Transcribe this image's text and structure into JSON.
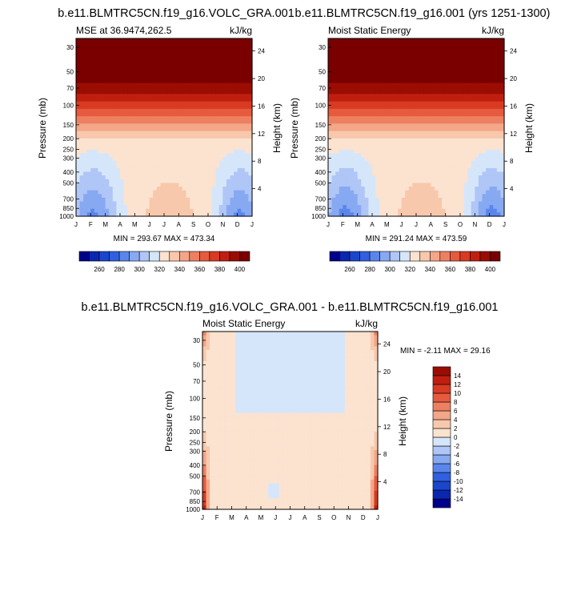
{
  "months": [
    "J",
    "F",
    "M",
    "A",
    "M",
    "J",
    "J",
    "A",
    "S",
    "O",
    "N",
    "D",
    "J"
  ],
  "pressure_ticks": [
    30,
    50,
    70,
    100,
    150,
    200,
    250,
    300,
    400,
    500,
    700,
    850,
    1000
  ],
  "height_ticks": [
    4,
    8,
    12,
    16,
    20,
    24
  ],
  "palette_abs": [
    "#00008c",
    "#0b27b0",
    "#1a46cc",
    "#3060e0",
    "#5a86ec",
    "#87a9f2",
    "#afc6f6",
    "#d6e6fa",
    "#fbe3d0",
    "#f8c8ac",
    "#f4a688",
    "#ee8062",
    "#e65a3e",
    "#d93a22",
    "#c01f10",
    "#9b0d03",
    "#7a0000"
  ],
  "palette_diff": [
    "#00008c",
    "#0b27b0",
    "#1a46cc",
    "#3060e0",
    "#5a86ec",
    "#87a9f2",
    "#afc6f6",
    "#d6e6fa",
    "#fbe3d0",
    "#f8c8ac",
    "#f4a688",
    "#ee8062",
    "#e65a3e",
    "#d93a22",
    "#c01f10",
    "#9b0d03"
  ],
  "chart_data": [
    {
      "type": "heatmap",
      "title": "b.e11.BLMTRC5CN.f19_g16.VOLC_GRA.001",
      "subtitle_left": "MSE at 36.9474,262.5",
      "subtitle_right": "kJ/kg",
      "xlabel": "",
      "ylabel": "Pressure (mb)",
      "ylabel_right": "Height (km)",
      "stats": "MIN = 293.67 MAX = 473.34",
      "colorbar_labels": [
        "260",
        "280",
        "300",
        "320",
        "340",
        "360",
        "380",
        "400"
      ],
      "level_range": [
        255,
        405
      ],
      "levels_step": 10
    },
    {
      "type": "heatmap",
      "title": "b.e11.BLMTRC5CN.f19_g16.001 (yrs 1251-1300)",
      "subtitle_left": "Moist Static Energy",
      "subtitle_right": "kJ/kg",
      "xlabel": "",
      "ylabel": "Pressure (mb)",
      "ylabel_right": "Height (km)",
      "stats": "MIN = 291.24 MAX = 473.59",
      "colorbar_labels": [
        "260",
        "280",
        "300",
        "320",
        "340",
        "360",
        "380",
        "400"
      ],
      "level_range": [
        255,
        405
      ],
      "levels_step": 10
    },
    {
      "type": "heatmap",
      "title": "b.e11.BLMTRC5CN.f19_g16.VOLC_GRA.001 - b.e11.BLMTRC5CN.f19_g16.001",
      "subtitle_left": "Moist Static Energy",
      "subtitle_right": "kJ/kg",
      "xlabel": "",
      "ylabel": "Pressure (mb)",
      "ylabel_right": "Height (km)",
      "stats": "MIN =  -2.11 MAX =  29.16",
      "colorbar_labels": [
        "14",
        "12",
        "10",
        "8",
        "6",
        "4",
        "2",
        "0",
        "-2",
        "-4",
        "-6",
        "-8",
        "-10",
        "-12",
        "-14"
      ],
      "level_range": [
        -14,
        14
      ],
      "levels_step": 2
    }
  ]
}
